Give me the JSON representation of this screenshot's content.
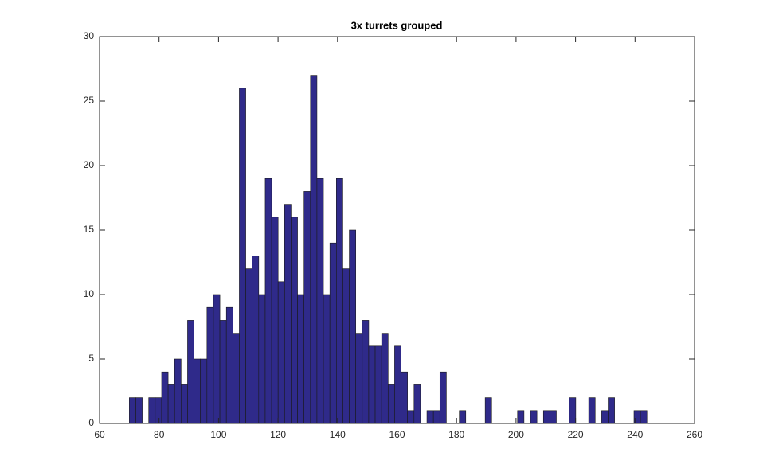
{
  "chart_data": {
    "type": "histogram",
    "title": "3x turrets grouped",
    "color": "#2f2a8a",
    "edgecolor": "#1a1a1a",
    "bins": [
      70,
      72.175,
      74.35,
      76.525,
      78.7,
      80.875,
      83.05,
      85.225,
      87.4,
      89.575,
      91.75,
      93.925,
      96.1,
      98.275,
      100.45,
      102.625,
      104.8,
      106.975,
      109.15,
      111.325,
      113.5,
      115.675,
      117.85,
      120.025,
      122.2,
      124.375,
      126.55,
      128.725,
      130.9,
      133.075,
      135.25,
      137.425,
      139.6,
      141.775,
      143.95,
      146.125,
      148.3,
      150.475,
      152.65,
      154.825,
      157,
      159.175,
      161.35,
      163.525,
      165.7,
      167.875,
      170.05,
      172.225,
      174.4,
      176.575,
      178.75,
      180.925,
      183.1,
      185.275,
      187.45,
      189.625,
      191.8,
      193.975,
      196.15,
      198.325,
      200.5,
      202.675,
      204.85,
      207.025,
      209.2,
      211.375,
      213.55,
      215.725,
      217.9,
      220.075,
      222.25,
      224.425,
      226.6,
      228.775,
      230.95,
      233.125,
      235.3,
      237.475,
      239.65,
      241.825,
      244
    ],
    "counts": [
      2,
      2,
      0,
      2,
      2,
      4,
      3,
      5,
      3,
      8,
      5,
      5,
      9,
      10,
      8,
      9,
      7,
      26,
      12,
      13,
      10,
      19,
      16,
      11,
      17,
      16,
      10,
      18,
      27,
      19,
      10,
      14,
      19,
      12,
      15,
      7,
      8,
      6,
      6,
      7,
      3,
      6,
      4,
      1,
      3,
      0,
      1,
      1,
      4,
      0,
      0,
      1,
      0,
      0,
      0,
      2,
      0,
      0,
      0,
      0,
      1,
      0,
      1,
      0,
      1,
      1,
      0,
      0,
      2,
      0,
      0,
      2,
      0,
      1,
      2,
      0,
      0,
      0,
      1,
      1
    ],
    "xlim": [
      60,
      260
    ],
    "xticks": [
      60,
      80,
      100,
      120,
      140,
      160,
      180,
      200,
      220,
      240,
      260
    ],
    "ylim": [
      0,
      30
    ],
    "yticks": [
      0,
      5,
      10,
      15,
      20,
      25,
      30
    ],
    "grid": false
  }
}
